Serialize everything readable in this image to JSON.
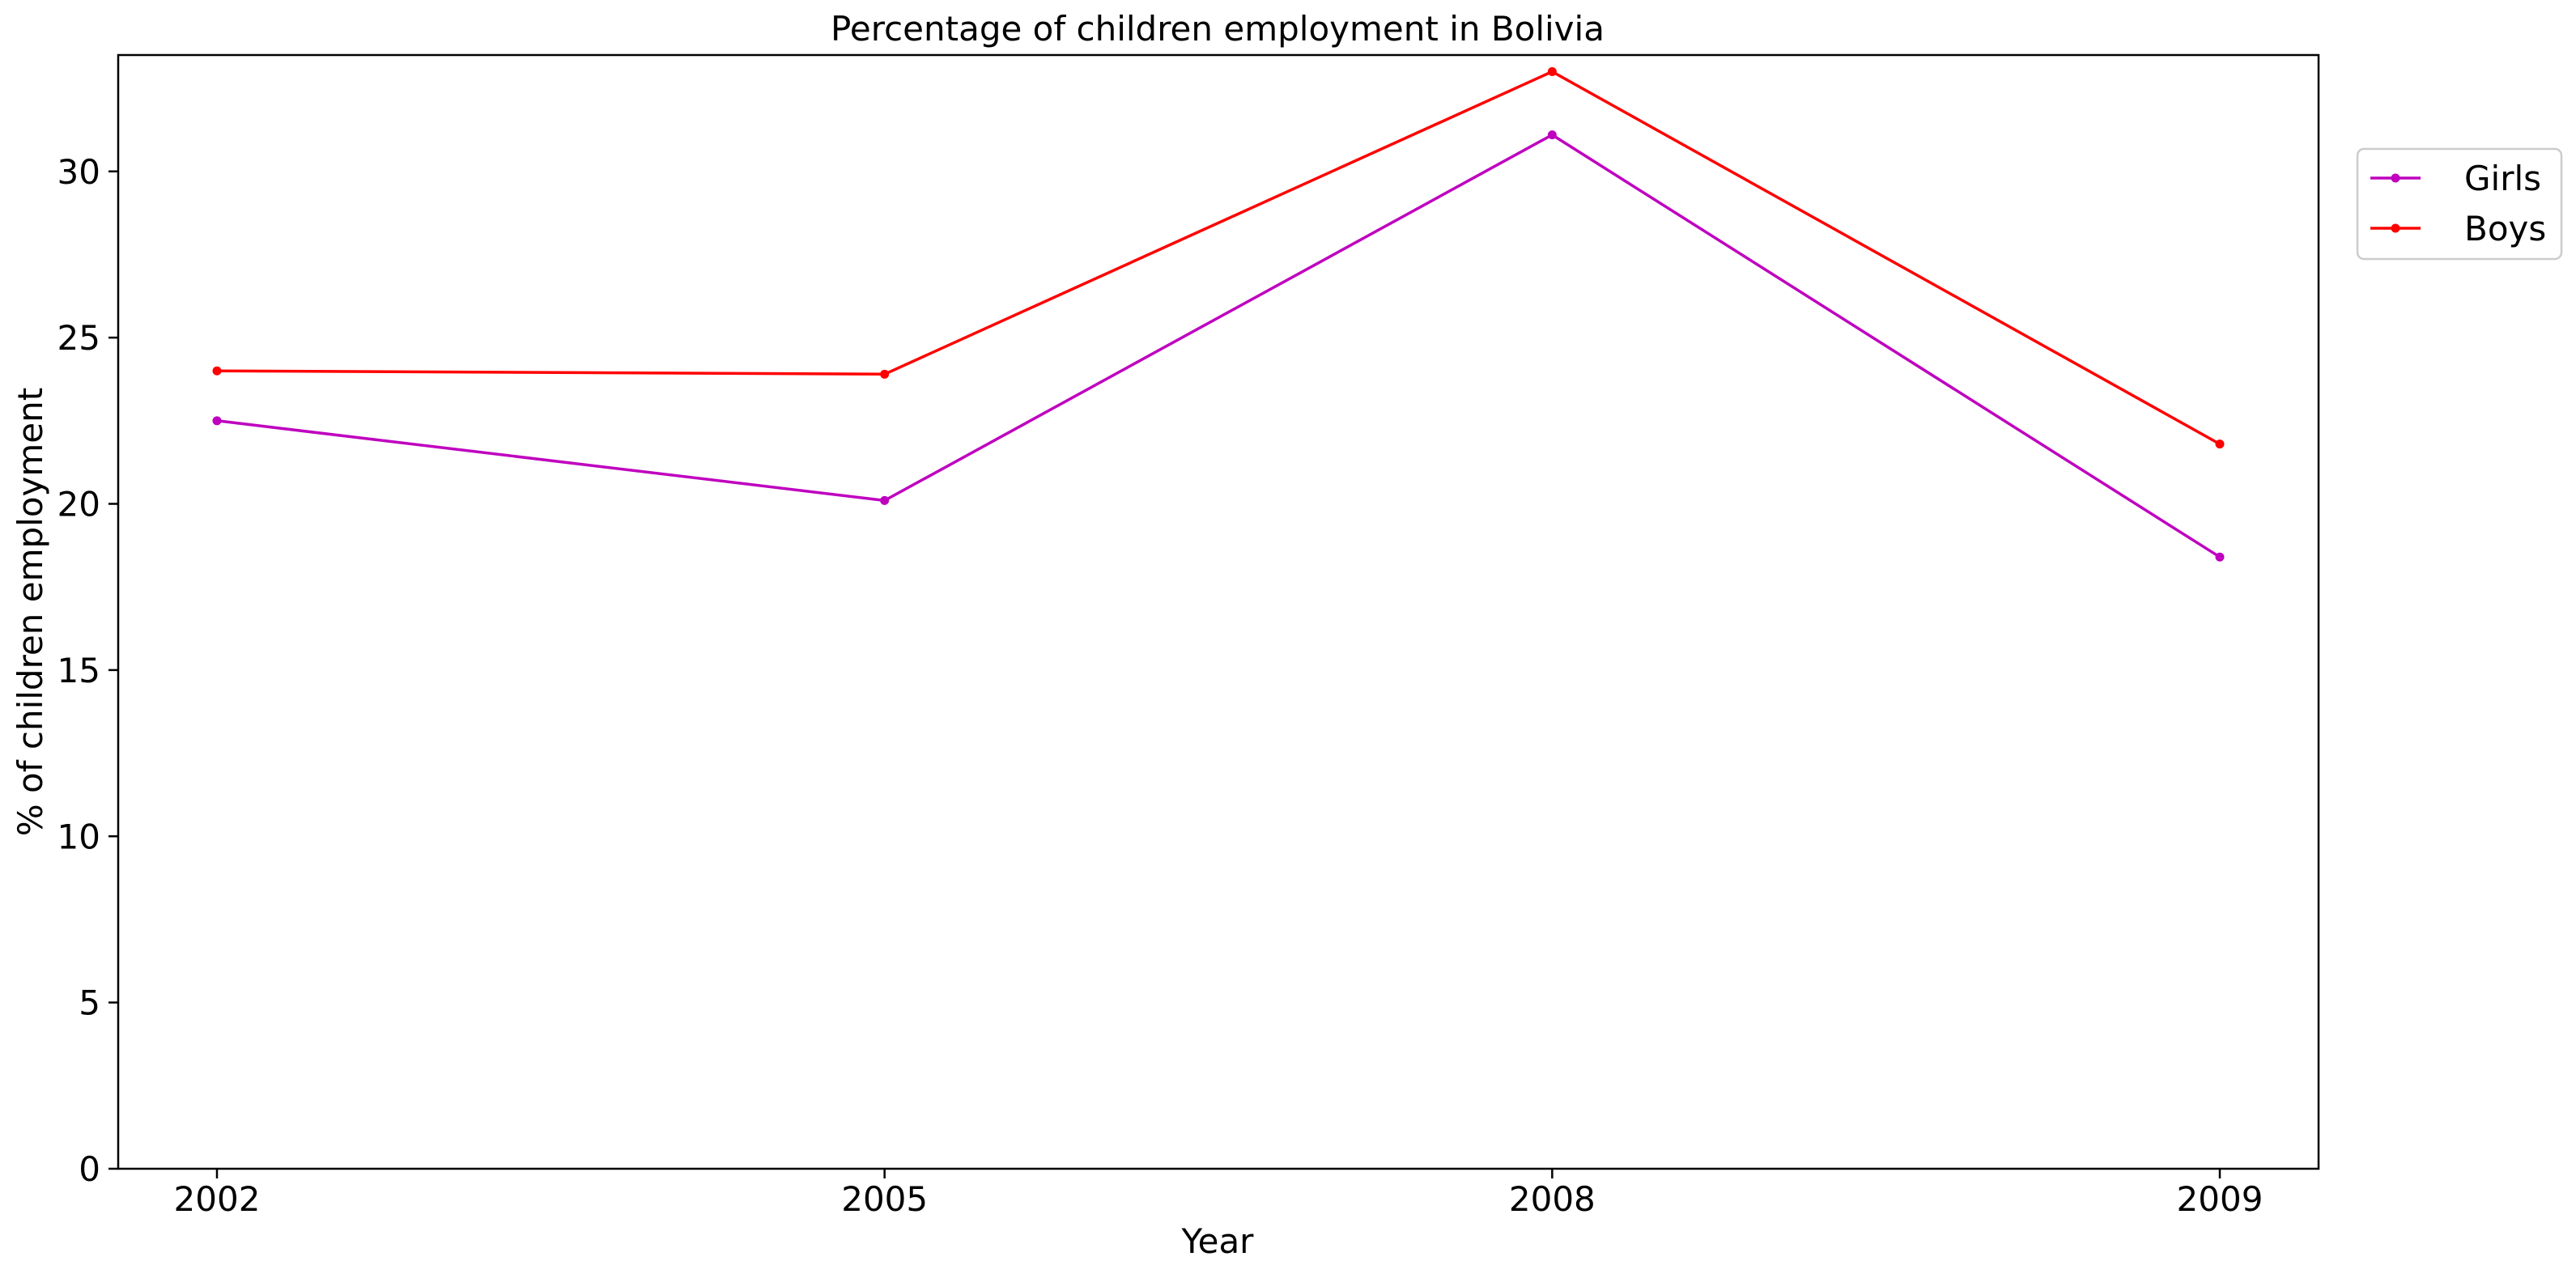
{
  "chart_data": {
    "type": "line",
    "title": "Percentage of children employment in Bolivia",
    "xlabel": "Year",
    "ylabel": "% of children employment",
    "categories": [
      "2002",
      "2005",
      "2008",
      "2009"
    ],
    "ylim": [
      0,
      33.5
    ],
    "yticks": [
      0,
      5,
      10,
      15,
      20,
      25,
      30
    ],
    "grid": false,
    "legend_position": "upper-right-outside",
    "series": [
      {
        "name": "Girls",
        "color": "#bf00bf",
        "values": [
          22.5,
          20.1,
          31.1,
          18.4
        ]
      },
      {
        "name": "Boys",
        "color": "#ff0000",
        "values": [
          24.0,
          23.9,
          33.0,
          21.8
        ]
      }
    ]
  }
}
